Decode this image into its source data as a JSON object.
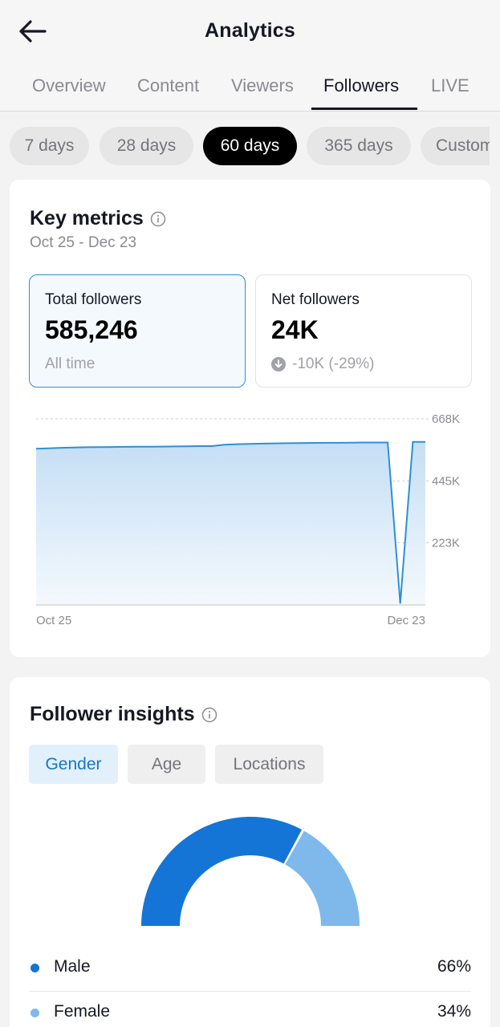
{
  "header": {
    "title": "Analytics",
    "back_icon": "arrow-left-icon"
  },
  "tabs": [
    {
      "label": "Overview",
      "active": false
    },
    {
      "label": "Content",
      "active": false
    },
    {
      "label": "Viewers",
      "active": false
    },
    {
      "label": "Followers",
      "active": true
    },
    {
      "label": "LIVE",
      "active": false
    }
  ],
  "period_pills": [
    {
      "label": "7 days",
      "active": false
    },
    {
      "label": "28 days",
      "active": false
    },
    {
      "label": "60 days",
      "active": true
    },
    {
      "label": "365 days",
      "active": false
    },
    {
      "label": "Custom",
      "active": false
    }
  ],
  "key_metrics": {
    "title": "Key metrics",
    "info_icon": "info-icon",
    "date_range": "Oct 25 - Dec 23",
    "total_followers": {
      "label": "Total followers",
      "value": "585,246",
      "sub": "All time"
    },
    "net_followers": {
      "label": "Net followers",
      "value": "24K",
      "change": "-10K (-29%)",
      "change_icon": "arrow-down-circle-icon"
    }
  },
  "chart_data": {
    "type": "area",
    "x_labels": [
      "Oct 25",
      "Dec 23"
    ],
    "y_ticks": [
      "668K",
      "445K",
      "223K"
    ],
    "y_tick_values": [
      668000,
      445000,
      223000
    ],
    "ylim": [
      0,
      668000
    ],
    "grid": true,
    "series": [
      {
        "values": [
          561000,
          562000,
          564000,
          565000,
          566000,
          566500,
          567000,
          567500,
          568000,
          568000,
          568500,
          569000,
          569500,
          570000,
          570000,
          575000,
          577000,
          578000,
          579000,
          580000,
          580500,
          581000,
          581500,
          582000,
          582000,
          582500,
          583000,
          583000,
          583000,
          5000,
          585000,
          585246
        ]
      }
    ],
    "color": "#2f8fd8"
  },
  "insights": {
    "title": "Follower insights",
    "info_icon": "info-icon",
    "segments": [
      {
        "label": "Gender",
        "active": true
      },
      {
        "label": "Age",
        "active": false
      },
      {
        "label": "Locations",
        "active": false
      }
    ],
    "gender_breakdown": [
      {
        "label": "Male",
        "value": "66%",
        "percent": 66,
        "color": "#1475d6"
      },
      {
        "label": "Female",
        "value": "34%",
        "percent": 34,
        "color": "#7fb9ec"
      }
    ]
  }
}
